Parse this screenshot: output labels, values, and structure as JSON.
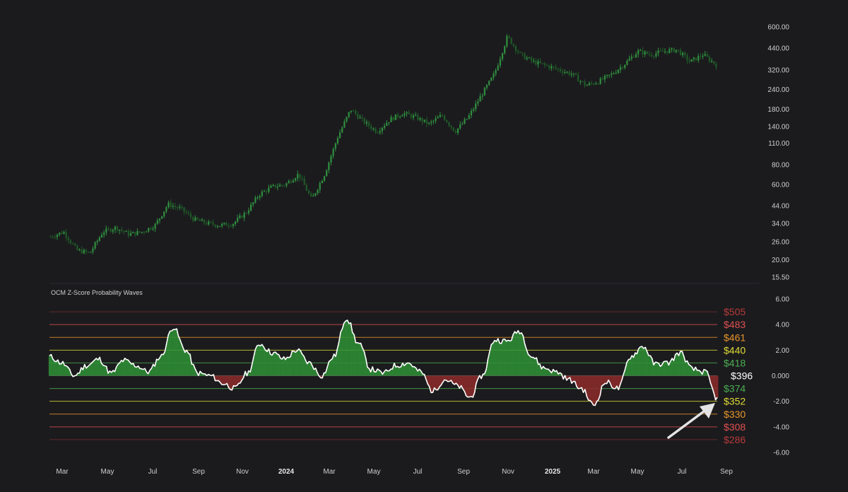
{
  "colors": {
    "background": "#1b1b1e",
    "candle_up": "#2f8f3e",
    "candle_down": "#1f5a26",
    "zline": "#ffffff",
    "positive_fill": "#2e8f35",
    "negative_fill": "#8c2a2a",
    "band_red": "#c74242",
    "band_orange": "#e29a2d",
    "band_yellow": "#d8d82e",
    "band_green": "#3e9a3e",
    "arrow": "#e4e4e4"
  },
  "price_axis": {
    "scale": "log",
    "range": [
      15.5,
      600
    ],
    "tick_labels": [
      "600.00",
      "440.00",
      "320.00",
      "240.00",
      "180.00",
      "140.00",
      "110.00",
      "80.00",
      "60.00",
      "44.00",
      "34.00",
      "26.00",
      "20.00",
      "15.50"
    ],
    "tick_values": [
      600,
      440,
      320,
      240,
      180,
      140,
      110,
      80,
      60,
      44,
      34,
      26,
      20,
      15.5
    ]
  },
  "indicator": {
    "title": "OCM Z-Score Probability Waves",
    "axis_range": [
      -6,
      6
    ],
    "tick_labels": [
      "6.00",
      "4.00",
      "2.00",
      "0.000",
      "-2.00",
      "-4.00",
      "-6.00"
    ],
    "tick_values": [
      6,
      4,
      2,
      0,
      -2,
      -4,
      -6
    ]
  },
  "time_axis": [
    {
      "label": "Mar",
      "bold": false
    },
    {
      "label": "May",
      "bold": false
    },
    {
      "label": "Jul",
      "bold": false
    },
    {
      "label": "Sep",
      "bold": false
    },
    {
      "label": "Nov",
      "bold": false
    },
    {
      "label": "2024",
      "bold": true
    },
    {
      "label": "Mar",
      "bold": false
    },
    {
      "label": "May",
      "bold": false
    },
    {
      "label": "Jul",
      "bold": false
    },
    {
      "label": "Sep",
      "bold": false
    },
    {
      "label": "Nov",
      "bold": false
    },
    {
      "label": "2025",
      "bold": true
    },
    {
      "label": "Mar",
      "bold": false
    },
    {
      "label": "May",
      "bold": false
    },
    {
      "label": "Jul",
      "bold": false
    },
    {
      "label": "Sep",
      "bold": false
    }
  ],
  "bands": [
    {
      "z": 5,
      "label": "$505",
      "color": "#b83a3a"
    },
    {
      "z": 4,
      "label": "$483",
      "color": "#e05050"
    },
    {
      "z": 3,
      "label": "$461",
      "color": "#e8952a"
    },
    {
      "z": 2,
      "label": "$440",
      "color": "#e0dc35"
    },
    {
      "z": 1,
      "label": "$418",
      "color": "#4caf50"
    },
    {
      "z": 0,
      "label": "$396",
      "color": "#ffffff"
    },
    {
      "z": -1,
      "label": "$374",
      "color": "#4caf50"
    },
    {
      "z": -2,
      "label": "$352",
      "color": "#e0dc35"
    },
    {
      "z": -3,
      "label": "$330",
      "color": "#e8952a"
    },
    {
      "z": -4,
      "label": "$308",
      "color": "#e05050"
    },
    {
      "z": -5,
      "label": "$286",
      "color": "#b83a3a"
    }
  ],
  "chart_data": [
    {
      "type": "line",
      "series": [
        {
          "values": [
            28,
            30,
            23,
            22,
            30,
            32,
            29,
            30,
            33,
            45,
            42,
            36,
            34,
            33,
            34,
            40,
            52,
            58,
            60,
            70,
            48,
            70,
            120,
            180,
            150,
            130,
            155,
            170,
            160,
            145,
            165,
            130,
            160,
            220,
            300,
            520,
            400,
            360,
            340,
            320,
            300,
            255,
            270,
            300,
            350,
            420,
            400,
            420,
            430,
            360,
            400,
            345
          ]
        }
      ]
    },
    {
      "type": "area",
      "title": "OCM Z-Score Probability Waves",
      "series": [
        {
          "values": [
            1.5,
            1.0,
            0.0,
            0.8,
            1.3,
            0.2,
            1.2,
            0.8,
            0.3,
            1.5,
            3.8,
            2.0,
            0.2,
            0.0,
            -0.6,
            -1.0,
            0.2,
            2.5,
            1.8,
            1.3,
            2.0,
            1.0,
            0.0,
            1.5,
            4.5,
            2.5,
            0.5,
            0.2,
            0.8,
            1.0,
            0.3,
            -1.2,
            -0.3,
            -0.8,
            -1.7,
            0.0,
            2.8,
            2.7,
            3.5,
            1.5,
            0.6,
            0.3,
            -0.3,
            -1.0,
            -2.3,
            -0.5,
            -1.0,
            1.5,
            2.3,
            0.9,
            1.0,
            1.8,
            0.5,
            0.3,
            -1.8
          ]
        }
      ],
      "ylim": [
        -6,
        6
      ]
    }
  ]
}
